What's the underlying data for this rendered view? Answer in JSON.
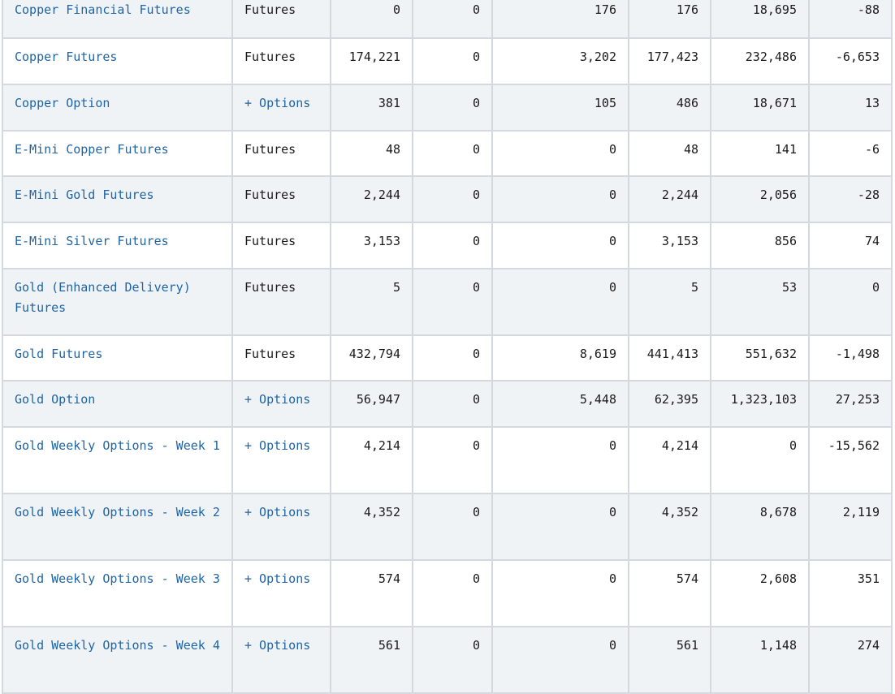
{
  "colors": {
    "link": "#1f64a6",
    "row_shade": "#eff3f6",
    "border": "#d3d9de"
  },
  "rows": [
    {
      "name": "Copper Financial Futures",
      "type": "Futures",
      "type_link": false,
      "c1": "0",
      "c2": "0",
      "c3": "176",
      "c4": "176",
      "c5": "18,695",
      "c6": "-88"
    },
    {
      "name": "Copper Futures",
      "type": "Futures",
      "type_link": false,
      "c1": "174,221",
      "c2": "0",
      "c3": "3,202",
      "c4": "177,423",
      "c5": "232,486",
      "c6": "-6,653"
    },
    {
      "name": "Copper Option",
      "type": "+ Options",
      "type_link": true,
      "c1": "381",
      "c2": "0",
      "c3": "105",
      "c4": "486",
      "c5": "18,671",
      "c6": "13"
    },
    {
      "name": "E-Mini Copper Futures",
      "type": "Futures",
      "type_link": false,
      "c1": "48",
      "c2": "0",
      "c3": "0",
      "c4": "48",
      "c5": "141",
      "c6": "-6"
    },
    {
      "name": "E-Mini Gold Futures",
      "type": "Futures",
      "type_link": false,
      "c1": "2,244",
      "c2": "0",
      "c3": "0",
      "c4": "2,244",
      "c5": "2,056",
      "c6": "-28"
    },
    {
      "name": "E-Mini Silver Futures",
      "type": "Futures",
      "type_link": false,
      "c1": "3,153",
      "c2": "0",
      "c3": "0",
      "c4": "3,153",
      "c5": "856",
      "c6": "74"
    },
    {
      "name": "Gold (Enhanced Delivery) Futures",
      "type": "Futures",
      "type_link": false,
      "c1": "5",
      "c2": "0",
      "c3": "0",
      "c4": "5",
      "c5": "53",
      "c6": "0"
    },
    {
      "name": "Gold Futures",
      "type": "Futures",
      "type_link": false,
      "c1": "432,794",
      "c2": "0",
      "c3": "8,619",
      "c4": "441,413",
      "c5": "551,632",
      "c6": "-1,498"
    },
    {
      "name": "Gold Option",
      "type": "+ Options",
      "type_link": true,
      "c1": "56,947",
      "c2": "0",
      "c3": "5,448",
      "c4": "62,395",
      "c5": "1,323,103",
      "c6": "27,253"
    },
    {
      "name": "Gold Weekly Options - Week 1",
      "type": "+ Options",
      "type_link": true,
      "c1": "4,214",
      "c2": "0",
      "c3": "0",
      "c4": "4,214",
      "c5": "0",
      "c6": "-15,562"
    },
    {
      "name": "Gold Weekly Options - Week 2",
      "type": "+ Options",
      "type_link": true,
      "c1": "4,352",
      "c2": "0",
      "c3": "0",
      "c4": "4,352",
      "c5": "8,678",
      "c6": "2,119"
    },
    {
      "name": "Gold Weekly Options - Week 3",
      "type": "+ Options",
      "type_link": true,
      "c1": "574",
      "c2": "0",
      "c3": "0",
      "c4": "574",
      "c5": "2,608",
      "c6": "351"
    },
    {
      "name": "Gold Weekly Options - Week 4",
      "type": "+ Options",
      "type_link": true,
      "c1": "561",
      "c2": "0",
      "c3": "0",
      "c4": "561",
      "c5": "1,148",
      "c6": "274"
    }
  ]
}
